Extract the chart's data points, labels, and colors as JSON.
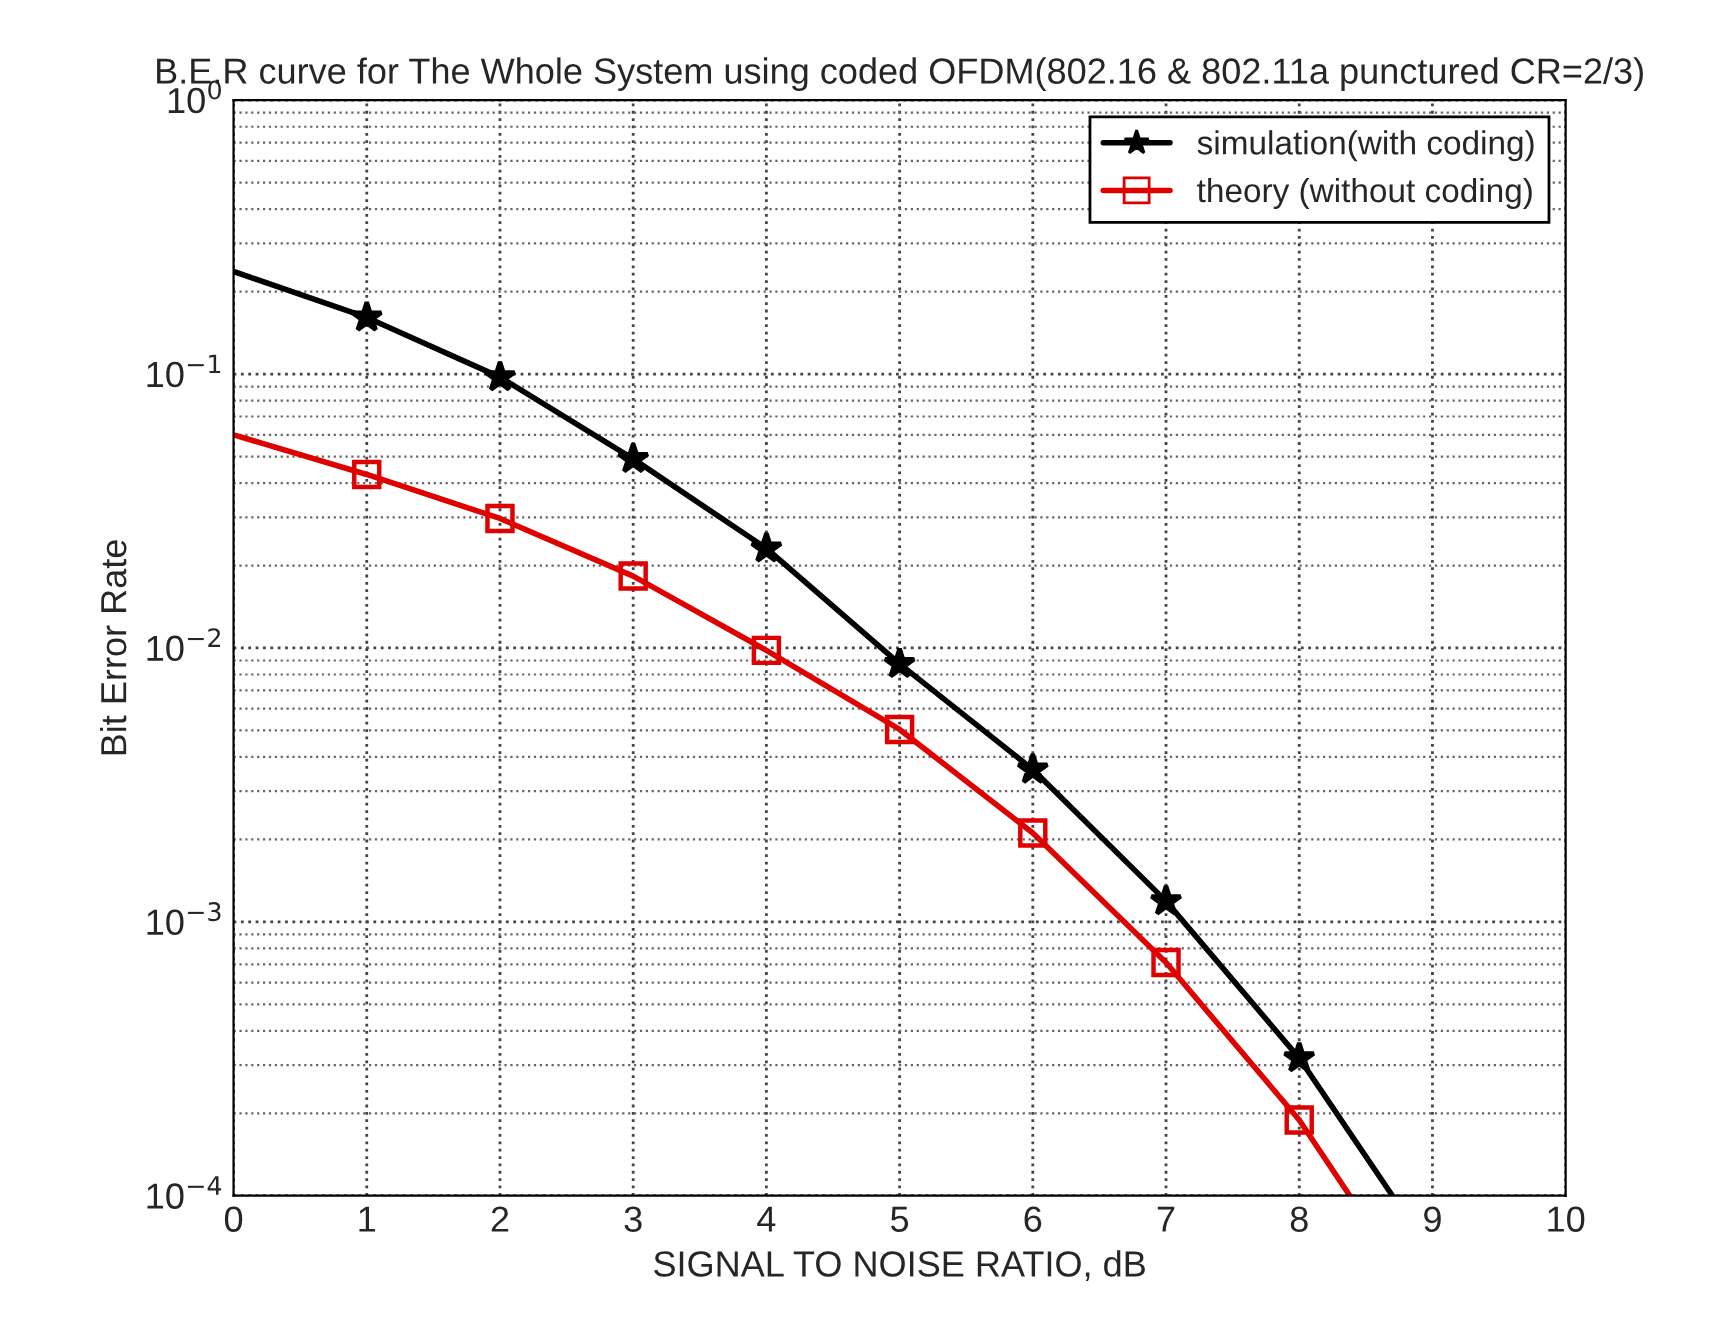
{
  "chart_data": {
    "type": "line",
    "title": "B.E.R curve for The Whole System using coded OFDM(802.16 & 802.11a punctured CR=2/3)",
    "xlabel": "SIGNAL TO NOISE RATIO, dB",
    "ylabel": "Bit Error Rate",
    "series": [
      {
        "name": "simulation(with coding)",
        "color": "#000000",
        "marker": "star",
        "x": [
          0,
          1,
          2,
          3,
          4,
          5,
          6,
          7,
          8,
          8.7
        ],
        "values": [
          0.237,
          0.161,
          0.0975,
          0.049,
          0.0231,
          0.00875,
          0.0036,
          0.00119,
          0.000318,
          0.0001
        ]
      },
      {
        "name": "theory (without coding)",
        "color": "#e00000",
        "marker": "square",
        "x": [
          0,
          1,
          2,
          3,
          4,
          5,
          6,
          7,
          8,
          8.38
        ],
        "values": [
          0.06,
          0.043,
          0.0297,
          0.0183,
          0.0098,
          0.00504,
          0.00211,
          0.00071,
          0.000189,
          0.0001
        ]
      }
    ],
    "log": "y",
    "xlim": [
      0,
      10
    ],
    "ylim": [
      0.0001,
      1
    ],
    "xticks": [
      0,
      1,
      2,
      3,
      4,
      5,
      6,
      7,
      8,
      9,
      10
    ],
    "yticks": [
      {
        "value": 0.0001,
        "label": "10$^{−4}$"
      },
      {
        "value": 0.001,
        "label": "10$^{−3}$"
      },
      {
        "value": 0.01,
        "label": "10$^{−2}$"
      },
      {
        "value": 0.1,
        "label": "10$^{−1}$"
      },
      {
        "value": 1,
        "label": "10$^{0}$"
      }
    ],
    "grid": true,
    "legend": "top right",
    "line_style": "solid"
  }
}
